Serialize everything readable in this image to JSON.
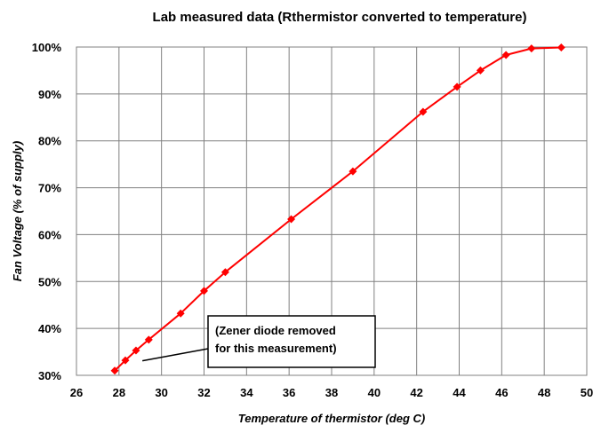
{
  "chart_data": {
    "type": "line",
    "title": "Lab measured data   (Rthermistor converted to temperature)",
    "xlabel": "Temperature of thermistor (deg C)",
    "ylabel": "Fan Voltage  (% of supply)",
    "xlim": [
      26,
      50
    ],
    "ylim": [
      30,
      100
    ],
    "x_ticks": [
      "26",
      "28",
      "30",
      "32",
      "34",
      "36",
      "38",
      "40",
      "42",
      "44",
      "46",
      "48",
      "50"
    ],
    "y_ticks": [
      "30%",
      "40%",
      "50%",
      "60%",
      "70%",
      "80%",
      "90%",
      "100%"
    ],
    "grid": true,
    "legend": "none",
    "series": [
      {
        "color": "#ff0000",
        "marker": "diamond",
        "points": [
          {
            "x": 27.8,
            "y": 31
          },
          {
            "x": 28.3,
            "y": 33.2
          },
          {
            "x": 28.8,
            "y": 35.3
          },
          {
            "x": 29.4,
            "y": 37.6
          },
          {
            "x": 30.9,
            "y": 43.2
          },
          {
            "x": 32.0,
            "y": 48
          },
          {
            "x": 33.0,
            "y": 52
          },
          {
            "x": 36.1,
            "y": 63.3
          },
          {
            "x": 39.0,
            "y": 73.5
          },
          {
            "x": 42.3,
            "y": 86.2
          },
          {
            "x": 43.9,
            "y": 91.5
          },
          {
            "x": 45.0,
            "y": 95
          },
          {
            "x": 46.2,
            "y": 98.3
          },
          {
            "x": 47.4,
            "y": 99.7
          },
          {
            "x": 48.8,
            "y": 99.9
          }
        ]
      }
    ],
    "annotations": [
      {
        "lines": [
          "(Zener diode removed",
          "for this measurement)"
        ],
        "points_to": {
          "x": 29.1,
          "y": 33.1
        }
      }
    ]
  }
}
